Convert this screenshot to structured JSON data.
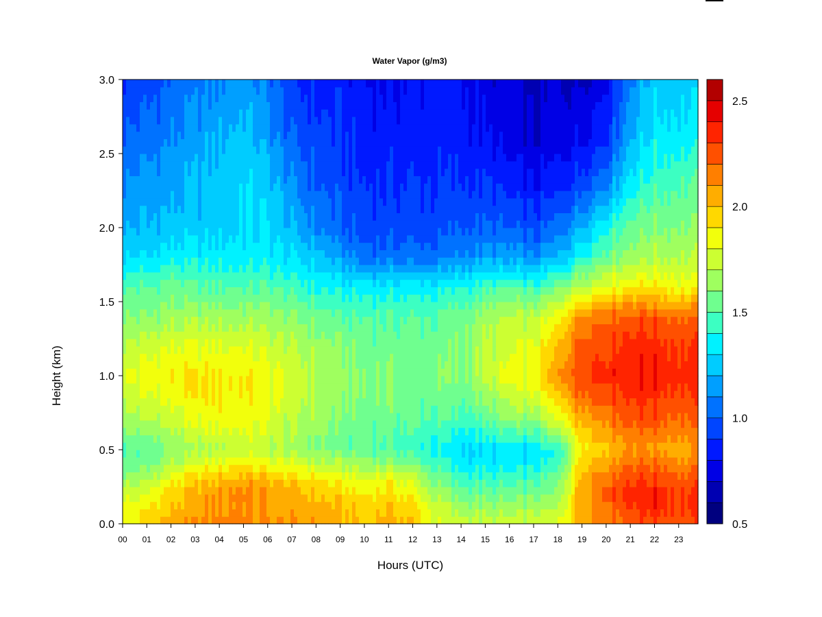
{
  "chart_data": {
    "type": "heatmap",
    "title": "Water Vapor (g/m3)",
    "xlabel": "Hours (UTC)",
    "ylabel": "Height (km)",
    "x_ticks": [
      "00",
      "01",
      "02",
      "03",
      "04",
      "05",
      "06",
      "07",
      "08",
      "09",
      "10",
      "11",
      "12",
      "13",
      "14",
      "15",
      "16",
      "17",
      "18",
      "19",
      "20",
      "21",
      "22",
      "23"
    ],
    "xlim": [
      0,
      23.8
    ],
    "y_ticks": [
      "0.0",
      "0.5",
      "1.0",
      "1.5",
      "2.0",
      "2.5",
      "3.0"
    ],
    "ylim": [
      0,
      3.0
    ],
    "colorbar": {
      "ticks": [
        "0.5",
        "1.0",
        "1.5",
        "2.0",
        "2.5"
      ],
      "range": [
        0.5,
        2.6
      ],
      "levels": [
        0.5,
        0.6,
        0.7,
        0.8,
        0.9,
        1.0,
        1.1,
        1.2,
        1.3,
        1.4,
        1.5,
        1.6,
        1.7,
        1.8,
        1.9,
        2.0,
        2.1,
        2.2,
        2.3,
        2.4,
        2.5,
        2.6
      ],
      "colors": [
        "#00007f",
        "#0000b2",
        "#0000e5",
        "#0019ff",
        "#0045ff",
        "#0072ff",
        "#009fff",
        "#00ccff",
        "#00f2ff",
        "#3cffc2",
        "#6fff8f",
        "#9fff5f",
        "#ccff32",
        "#f2ff0c",
        "#ffd800",
        "#ffad00",
        "#ff7f00",
        "#ff5000",
        "#ff2400",
        "#e50000",
        "#b20000"
      ]
    },
    "z_hours": [
      0,
      1,
      2,
      3,
      4,
      5,
      6,
      7,
      8,
      9,
      10,
      11,
      12,
      13,
      14,
      15,
      16,
      17,
      18,
      19,
      20,
      21,
      22,
      23
    ],
    "z_heights": [
      0.0,
      0.1,
      0.2,
      0.3,
      0.4,
      0.5,
      0.7,
      0.9,
      1.0,
      1.2,
      1.4,
      1.6,
      1.8,
      2.0,
      2.3,
      2.6,
      3.0
    ],
    "z_values": [
      [
        1.85,
        1.95,
        2.05,
        2.1,
        2.15,
        2.15,
        2.1,
        2.1,
        2.1,
        2.05,
        2.0,
        2.05,
        2.0,
        1.8,
        1.75,
        1.75,
        1.75,
        1.75,
        1.8,
        2.05,
        2.15,
        2.25,
        2.3,
        2.25
      ],
      [
        1.85,
        1.9,
        2.0,
        2.05,
        2.1,
        2.1,
        2.05,
        2.05,
        2.05,
        2.0,
        1.95,
        2.0,
        1.95,
        1.75,
        1.65,
        1.65,
        1.65,
        1.65,
        1.7,
        2.05,
        2.2,
        2.3,
        2.35,
        2.3
      ],
      [
        1.75,
        1.8,
        1.95,
        2.05,
        2.1,
        2.15,
        2.1,
        2.05,
        2.0,
        1.95,
        1.9,
        1.95,
        1.85,
        1.65,
        1.55,
        1.55,
        1.55,
        1.55,
        1.6,
        2.1,
        2.25,
        2.35,
        2.4,
        2.3
      ],
      [
        1.65,
        1.7,
        1.85,
        1.95,
        2.0,
        2.05,
        2.0,
        1.95,
        1.9,
        1.85,
        1.8,
        1.85,
        1.75,
        1.55,
        1.45,
        1.45,
        1.45,
        1.45,
        1.55,
        2.05,
        2.2,
        2.3,
        2.3,
        2.25
      ],
      [
        1.55,
        1.55,
        1.7,
        1.8,
        1.85,
        1.9,
        1.85,
        1.8,
        1.75,
        1.7,
        1.65,
        1.65,
        1.6,
        1.45,
        1.35,
        1.35,
        1.35,
        1.35,
        1.45,
        2.0,
        2.1,
        2.2,
        2.2,
        2.15
      ],
      [
        1.5,
        1.5,
        1.6,
        1.65,
        1.7,
        1.75,
        1.7,
        1.65,
        1.6,
        1.55,
        1.5,
        1.5,
        1.45,
        1.35,
        1.3,
        1.3,
        1.3,
        1.3,
        1.4,
        1.9,
        2.0,
        2.1,
        2.1,
        2.05
      ],
      [
        1.65,
        1.7,
        1.75,
        1.8,
        1.85,
        1.85,
        1.8,
        1.7,
        1.65,
        1.55,
        1.55,
        1.55,
        1.5,
        1.5,
        1.45,
        1.5,
        1.6,
        1.6,
        1.8,
        2.05,
        2.15,
        2.25,
        2.25,
        2.2
      ],
      [
        1.75,
        1.8,
        1.85,
        1.9,
        1.9,
        1.9,
        1.85,
        1.75,
        1.7,
        1.65,
        1.6,
        1.6,
        1.55,
        1.55,
        1.55,
        1.65,
        1.75,
        1.8,
        2.0,
        2.25,
        2.3,
        2.35,
        2.35,
        2.3
      ],
      [
        1.8,
        1.85,
        1.9,
        1.9,
        1.9,
        1.9,
        1.85,
        1.75,
        1.7,
        1.65,
        1.6,
        1.6,
        1.55,
        1.6,
        1.6,
        1.7,
        1.85,
        1.85,
        2.1,
        2.3,
        2.35,
        2.4,
        2.4,
        2.35
      ],
      [
        1.7,
        1.75,
        1.8,
        1.8,
        1.8,
        1.8,
        1.75,
        1.7,
        1.65,
        1.6,
        1.55,
        1.55,
        1.55,
        1.55,
        1.6,
        1.7,
        1.75,
        1.8,
        2.0,
        2.25,
        2.3,
        2.35,
        2.35,
        2.3
      ],
      [
        1.6,
        1.6,
        1.65,
        1.65,
        1.65,
        1.65,
        1.65,
        1.6,
        1.55,
        1.5,
        1.5,
        1.5,
        1.5,
        1.5,
        1.55,
        1.65,
        1.7,
        1.7,
        1.85,
        2.15,
        2.2,
        2.25,
        2.25,
        2.2
      ],
      [
        1.5,
        1.5,
        1.55,
        1.5,
        1.5,
        1.5,
        1.5,
        1.45,
        1.4,
        1.35,
        1.35,
        1.35,
        1.35,
        1.35,
        1.4,
        1.45,
        1.5,
        1.45,
        1.55,
        1.75,
        1.85,
        1.9,
        1.9,
        1.85
      ],
      [
        1.3,
        1.3,
        1.35,
        1.35,
        1.35,
        1.35,
        1.35,
        1.3,
        1.25,
        1.15,
        1.05,
        1.05,
        1.05,
        1.05,
        1.1,
        1.15,
        1.15,
        1.1,
        1.2,
        1.4,
        1.55,
        1.65,
        1.7,
        1.7
      ],
      [
        1.2,
        1.2,
        1.25,
        1.25,
        1.25,
        1.3,
        1.3,
        1.2,
        1.1,
        1.0,
        0.95,
        0.95,
        0.95,
        0.95,
        1.0,
        1.0,
        1.0,
        0.95,
        1.05,
        1.2,
        1.4,
        1.55,
        1.6,
        1.6
      ],
      [
        1.1,
        1.15,
        1.15,
        1.2,
        1.25,
        1.3,
        1.25,
        1.1,
        1.0,
        0.95,
        0.9,
        0.9,
        0.9,
        0.9,
        0.9,
        0.9,
        0.85,
        0.8,
        0.85,
        0.95,
        1.1,
        1.35,
        1.45,
        1.5
      ],
      [
        1.0,
        1.05,
        1.1,
        1.15,
        1.2,
        1.25,
        1.15,
        1.0,
        0.95,
        0.9,
        0.85,
        0.85,
        0.85,
        0.85,
        0.85,
        0.8,
        0.75,
        0.7,
        0.75,
        0.8,
        0.9,
        1.2,
        1.35,
        1.35
      ],
      [
        0.9,
        0.95,
        1.0,
        1.05,
        1.1,
        1.15,
        1.05,
        0.9,
        0.85,
        0.85,
        0.8,
        0.8,
        0.8,
        0.85,
        0.8,
        0.75,
        0.7,
        0.65,
        0.7,
        0.7,
        0.8,
        1.1,
        1.25,
        1.25
      ]
    ]
  }
}
